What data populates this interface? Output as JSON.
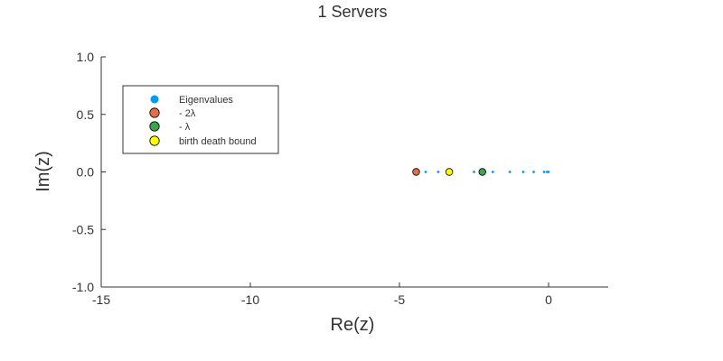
{
  "chart_data": {
    "type": "scatter",
    "title": "1 Servers",
    "xlabel": "Re(z)",
    "ylabel": "Im(z)",
    "xlim": [
      -15,
      2
    ],
    "ylim": [
      -1.0,
      1.0
    ],
    "xticks": [
      -15,
      -10,
      -5,
      0
    ],
    "xtick_labels": [
      "-15",
      "-10",
      "-5",
      "0"
    ],
    "yticks": [
      1.0,
      0.5,
      0.0,
      -0.5,
      -1.0
    ],
    "ytick_labels": [
      "1.0",
      "0.5",
      "0.0",
      "-0.5",
      "-1.0"
    ],
    "grid": false,
    "legend_position": "top-left",
    "series": [
      {
        "name": "Eigenvalues",
        "color": "#009af9",
        "marker": "small-dot",
        "x": [
          -4.12,
          -3.7,
          -3.28,
          -2.5,
          -1.87,
          -1.3,
          -0.85,
          -0.5,
          -0.15,
          -0.05,
          0.0
        ],
        "y": [
          0,
          0,
          0,
          0,
          0,
          0,
          0,
          0,
          0,
          0,
          0
        ]
      },
      {
        "name": "- 2λ",
        "color": "#e26f46",
        "marker": "circle",
        "x": [
          -4.44
        ],
        "y": [
          0
        ]
      },
      {
        "name": "- λ",
        "color": "#3da44d",
        "marker": "circle",
        "x": [
          -2.22
        ],
        "y": [
          0
        ]
      },
      {
        "name": "birth death bound",
        "color": "#ffff00",
        "marker": "circle",
        "x": [
          -3.33
        ],
        "y": [
          0
        ]
      }
    ]
  }
}
